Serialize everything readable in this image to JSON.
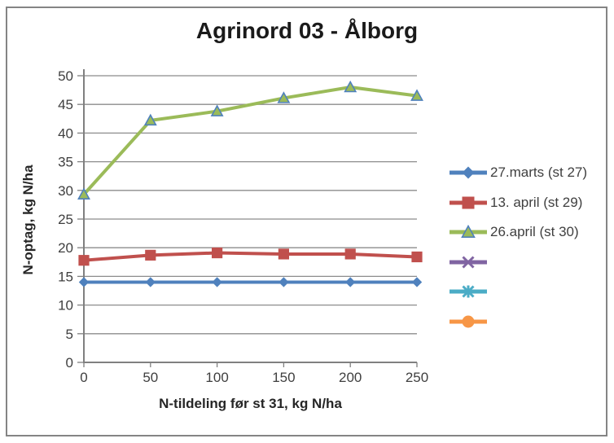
{
  "figure": {
    "title": "Agrinord 03 - Ålborg"
  },
  "chart_data": {
    "type": "line",
    "title": "Agrinord 03 - Ålborg",
    "xlabel": "N-tildeling før st 31, kg N/ha",
    "ylabel": "N-optag, kg N/ha",
    "x": [
      0,
      50,
      100,
      150,
      200,
      250
    ],
    "xticks": [
      0,
      50,
      100,
      150,
      200,
      250
    ],
    "yticks": [
      0,
      5,
      10,
      15,
      20,
      25,
      30,
      35,
      40,
      45,
      50
    ],
    "xlim": [
      0,
      250
    ],
    "ylim": [
      0,
      50
    ],
    "grid": "horizontal-only",
    "legend_position": "right",
    "series": [
      {
        "name": "27.marts (st 27)",
        "color": "#4F81BD",
        "marker": "diamond",
        "values": [
          14,
          14,
          14,
          14,
          14,
          14
        ]
      },
      {
        "name": "13. april (st 29)",
        "color": "#C0504D",
        "marker": "square",
        "values": [
          17.8,
          18.7,
          19.1,
          18.9,
          18.9,
          18.4
        ]
      },
      {
        "name": "26.april (st 30)",
        "color": "#9BBB59",
        "marker": "triangle",
        "marker_fill": "#9BBB59",
        "marker_stroke": "#4F81BD",
        "values": [
          29.3,
          42.2,
          43.8,
          46.1,
          48,
          46.5
        ]
      },
      {
        "name": "",
        "color": "#8064A2",
        "marker": "x",
        "values": [],
        "legend_only": true
      },
      {
        "name": "",
        "color": "#4BACC6",
        "marker": "asterisk",
        "values": [],
        "legend_only": true
      },
      {
        "name": "",
        "color": "#F79646",
        "marker": "circle",
        "values": [],
        "legend_only": true
      }
    ]
  },
  "style": {
    "background": "#FFFFFF",
    "frame_border_color": "#848484",
    "axis_color": "#808080",
    "gridline_color": "#8C8C8C",
    "tick_label_color": "#3F3F3F",
    "title_color": "#1A1A1A"
  }
}
